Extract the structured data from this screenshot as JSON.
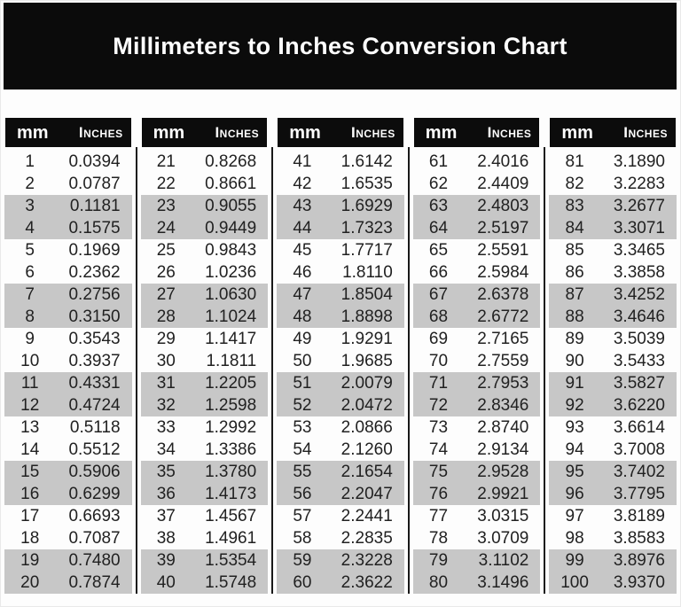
{
  "title": "Millimeters to Inches Conversion Chart",
  "colors": {
    "band_black": "#0b0b0b",
    "divider_black": "#191919",
    "row_shade_gray": "#c7c7c7",
    "text_dark": "#212121",
    "header_text_white": "#ffffff"
  },
  "chart_data": {
    "type": "table",
    "title": "Millimeters to Inches Conversion Chart",
    "column_headers": [
      "mm",
      "Inches"
    ],
    "shading": "rows grouped in pairs; pairs 3-4, 7-8, 11-12, 15-16, 19-20 of each column group are gray",
    "groups": [
      {
        "rows": [
          [
            "1",
            "0.0394"
          ],
          [
            "2",
            "0.0787"
          ],
          [
            "3",
            "0.1181"
          ],
          [
            "4",
            "0.1575"
          ],
          [
            "5",
            "0.1969"
          ],
          [
            "6",
            "0.2362"
          ],
          [
            "7",
            "0.2756"
          ],
          [
            "8",
            "0.3150"
          ],
          [
            "9",
            "0.3543"
          ],
          [
            "10",
            "0.3937"
          ],
          [
            "11",
            "0.4331"
          ],
          [
            "12",
            "0.4724"
          ],
          [
            "13",
            "0.5118"
          ],
          [
            "14",
            "0.5512"
          ],
          [
            "15",
            "0.5906"
          ],
          [
            "16",
            "0.6299"
          ],
          [
            "17",
            "0.6693"
          ],
          [
            "18",
            "0.7087"
          ],
          [
            "19",
            "0.7480"
          ],
          [
            "20",
            "0.7874"
          ]
        ]
      },
      {
        "rows": [
          [
            "21",
            "0.8268"
          ],
          [
            "22",
            "0.8661"
          ],
          [
            "23",
            "0.9055"
          ],
          [
            "24",
            "0.9449"
          ],
          [
            "25",
            "0.9843"
          ],
          [
            "26",
            "1.0236"
          ],
          [
            "27",
            "1.0630"
          ],
          [
            "28",
            "1.1024"
          ],
          [
            "29",
            "1.1417"
          ],
          [
            "30",
            "1.1811"
          ],
          [
            "31",
            "1.2205"
          ],
          [
            "32",
            "1.2598"
          ],
          [
            "33",
            "1.2992"
          ],
          [
            "34",
            "1.3386"
          ],
          [
            "35",
            "1.3780"
          ],
          [
            "36",
            "1.4173"
          ],
          [
            "37",
            "1.4567"
          ],
          [
            "38",
            "1.4961"
          ],
          [
            "39",
            "1.5354"
          ],
          [
            "40",
            "1.5748"
          ]
        ]
      },
      {
        "rows": [
          [
            "41",
            "1.6142"
          ],
          [
            "42",
            "1.6535"
          ],
          [
            "43",
            "1.6929"
          ],
          [
            "44",
            "1.7323"
          ],
          [
            "45",
            "1.7717"
          ],
          [
            "46",
            "1.8110"
          ],
          [
            "47",
            "1.8504"
          ],
          [
            "48",
            "1.8898"
          ],
          [
            "49",
            "1.9291"
          ],
          [
            "50",
            "1.9685"
          ],
          [
            "51",
            "2.0079"
          ],
          [
            "52",
            "2.0472"
          ],
          [
            "53",
            "2.0866"
          ],
          [
            "54",
            "2.1260"
          ],
          [
            "55",
            "2.1654"
          ],
          [
            "56",
            "2.2047"
          ],
          [
            "57",
            "2.2441"
          ],
          [
            "58",
            "2.2835"
          ],
          [
            "59",
            "2.3228"
          ],
          [
            "60",
            "2.3622"
          ]
        ]
      },
      {
        "rows": [
          [
            "61",
            "2.4016"
          ],
          [
            "62",
            "2.4409"
          ],
          [
            "63",
            "2.4803"
          ],
          [
            "64",
            "2.5197"
          ],
          [
            "65",
            "2.5591"
          ],
          [
            "66",
            "2.5984"
          ],
          [
            "67",
            "2.6378"
          ],
          [
            "68",
            "2.6772"
          ],
          [
            "69",
            "2.7165"
          ],
          [
            "70",
            "2.7559"
          ],
          [
            "71",
            "2.7953"
          ],
          [
            "72",
            "2.8346"
          ],
          [
            "73",
            "2.8740"
          ],
          [
            "74",
            "2.9134"
          ],
          [
            "75",
            "2.9528"
          ],
          [
            "76",
            "2.9921"
          ],
          [
            "77",
            "3.0315"
          ],
          [
            "78",
            "3.0709"
          ],
          [
            "79",
            "3.1102"
          ],
          [
            "80",
            "3.1496"
          ]
        ]
      },
      {
        "rows": [
          [
            "81",
            "3.1890"
          ],
          [
            "82",
            "3.2283"
          ],
          [
            "83",
            "3.2677"
          ],
          [
            "84",
            "3.3071"
          ],
          [
            "85",
            "3.3465"
          ],
          [
            "86",
            "3.3858"
          ],
          [
            "87",
            "3.4252"
          ],
          [
            "88",
            "3.4646"
          ],
          [
            "89",
            "3.5039"
          ],
          [
            "90",
            "3.5433"
          ],
          [
            "91",
            "3.5827"
          ],
          [
            "92",
            "3.6220"
          ],
          [
            "93",
            "3.6614"
          ],
          [
            "94",
            "3.7008"
          ],
          [
            "95",
            "3.7402"
          ],
          [
            "96",
            "3.7795"
          ],
          [
            "97",
            "3.8189"
          ],
          [
            "98",
            "3.8583"
          ],
          [
            "99",
            "3.8976"
          ],
          [
            "100",
            "3.9370"
          ]
        ]
      }
    ]
  }
}
